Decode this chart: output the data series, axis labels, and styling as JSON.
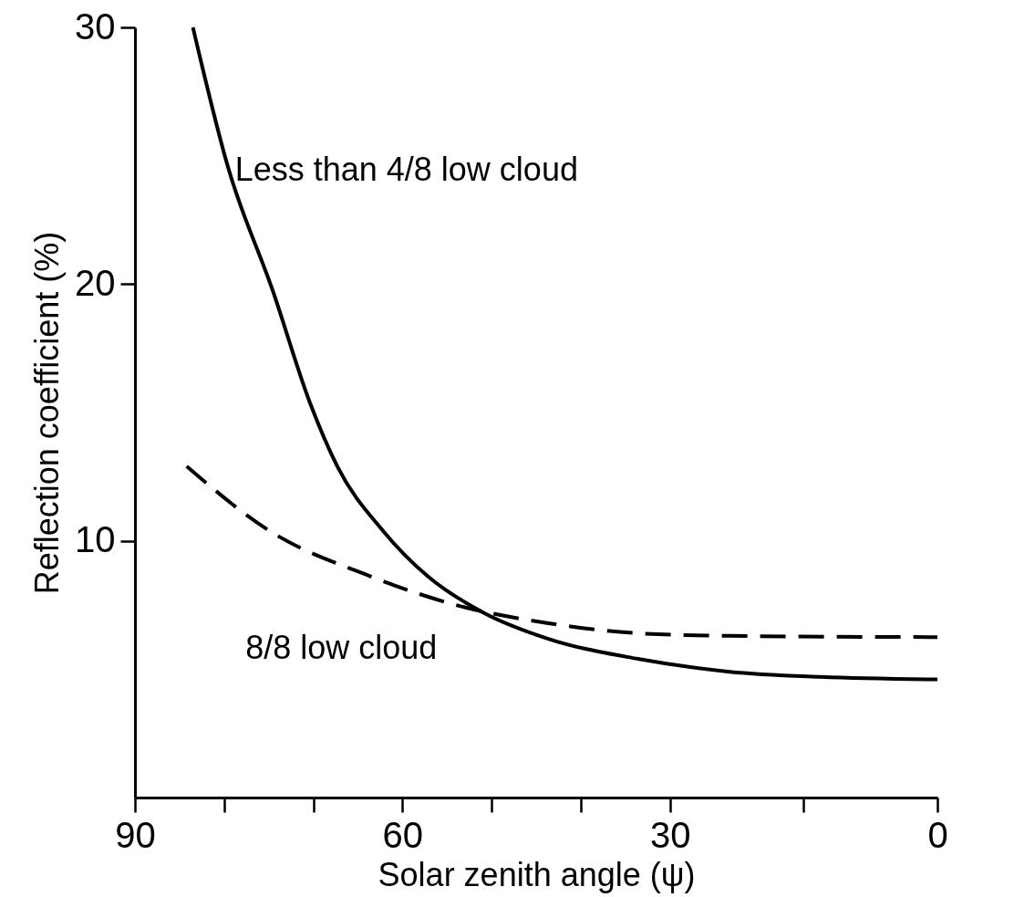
{
  "chart_data": {
    "type": "line",
    "xlabel": "Solar zenith angle (ψ)",
    "ylabel": "Reflection coefficient (%)",
    "xlim": [
      90,
      0
    ],
    "ylim": [
      0,
      30
    ],
    "xticks": [
      90,
      {
        "value": 80,
        "label": null
      },
      {
        "value": 70,
        "label": null
      },
      60,
      {
        "value": 50,
        "label": null
      },
      {
        "value": 40,
        "label": null
      },
      30,
      {
        "value": 15,
        "label": null
      },
      0
    ],
    "yticks": [
      10,
      20,
      30
    ],
    "grid": false,
    "legend": false,
    "marker": "none",
    "series": [
      {
        "name": "Less than 4/8 low cloud",
        "color": "#000000",
        "line_style": "solid",
        "x": [
          83.5,
          79.6,
          74.5,
          70.4,
          67.3,
          62.2,
          57.1,
          50.9,
          43.8,
          33.6,
          23.3,
          13.1,
          0
        ],
        "values": [
          30,
          24.6,
          19.7,
          15.4,
          12.9,
          10.4,
          8.6,
          7.2,
          6.2,
          5.4,
          4.9,
          4.7,
          4.6
        ]
      },
      {
        "name": "8/8 low cloud",
        "color": "#000000",
        "line_style": "dashed",
        "x": [
          84.2,
          74.5,
          64.2,
          54,
          43.8,
          33.6,
          23.3,
          0
        ],
        "values": [
          12.9,
          10.3,
          8.7,
          7.5,
          6.8,
          6.4,
          6.3,
          6.25
        ]
      }
    ]
  }
}
